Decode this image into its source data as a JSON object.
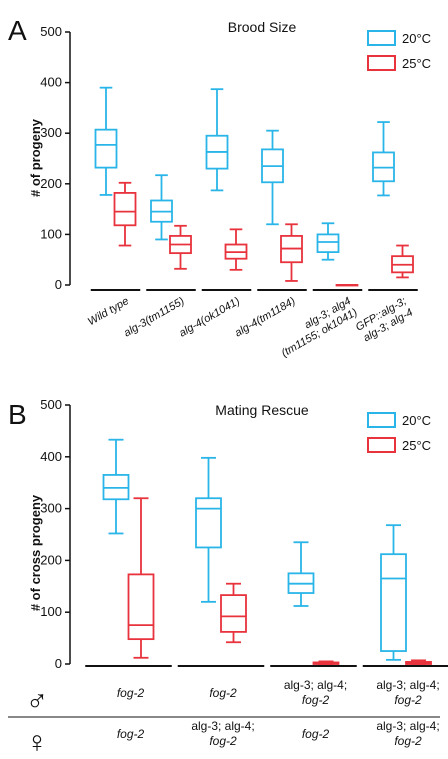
{
  "colors": {
    "c20": "#29b5e8",
    "c25": "#e8323c"
  },
  "chart_data": [
    {
      "panel": "A",
      "type": "box",
      "title": "Brood Size",
      "ylabel": "# of progeny",
      "ylim": [
        0,
        500
      ],
      "yticks": [
        0,
        100,
        200,
        300,
        400,
        500
      ],
      "legend": [
        "20°C",
        "25°C"
      ],
      "legend_position": "top-right",
      "categories": [
        [
          "Wild type"
        ],
        [
          "alg-3(tm1155)"
        ],
        [
          "alg-4(ok1041)"
        ],
        [
          "alg-4(tm1184)"
        ],
        [
          "alg-3; alg4",
          "(tm1155; ok1041)"
        ],
        [
          "GFP::alg-3;",
          "alg-3; alg-4"
        ]
      ],
      "series": [
        {
          "name": "20°C",
          "boxes": [
            {
              "min": 178,
              "q1": 232,
              "median": 277,
              "q3": 307,
              "max": 390
            },
            {
              "min": 90,
              "q1": 125,
              "median": 145,
              "q3": 167,
              "max": 217
            },
            {
              "min": 187,
              "q1": 230,
              "median": 263,
              "q3": 295,
              "max": 387
            },
            {
              "min": 120,
              "q1": 203,
              "median": 235,
              "q3": 268,
              "max": 305
            },
            {
              "min": 50,
              "q1": 65,
              "median": 85,
              "q3": 100,
              "max": 122
            },
            {
              "min": 177,
              "q1": 205,
              "median": 232,
              "q3": 262,
              "max": 322
            }
          ]
        },
        {
          "name": "25°C",
          "boxes": [
            {
              "min": 78,
              "q1": 118,
              "median": 145,
              "q3": 182,
              "max": 202
            },
            {
              "min": 32,
              "q1": 63,
              "median": 80,
              "q3": 97,
              "max": 117
            },
            {
              "min": 30,
              "q1": 52,
              "median": 65,
              "q3": 80,
              "max": 110
            },
            {
              "min": 8,
              "q1": 45,
              "median": 72,
              "q3": 97,
              "max": 120
            },
            {
              "min": 0,
              "q1": 0,
              "median": 0,
              "q3": 0,
              "max": 0
            },
            {
              "min": 15,
              "q1": 25,
              "median": 40,
              "q3": 57,
              "max": 78
            }
          ]
        }
      ]
    },
    {
      "panel": "B",
      "type": "box",
      "title": "Mating Rescue",
      "ylabel": "# of cross progeny",
      "ylim": [
        0,
        500
      ],
      "yticks": [
        0,
        100,
        200,
        300,
        400,
        500
      ],
      "legend": [
        "20°C",
        "25°C"
      ],
      "legend_position": "top-right",
      "categories": [
        {
          "male": [
            "fog-2"
          ],
          "herm": [
            "fog-2"
          ]
        },
        {
          "male": [
            "fog-2"
          ],
          "herm": [
            "alg-3; alg-4;",
            "fog-2"
          ]
        },
        {
          "male": [
            "alg-3; alg-4;",
            "fog-2"
          ],
          "herm": [
            "fog-2"
          ]
        },
        {
          "male": [
            "alg-3; alg-4;",
            "fog-2"
          ],
          "herm": [
            "alg-3; alg-4;",
            "fog-2"
          ]
        }
      ],
      "series": [
        {
          "name": "20°C",
          "boxes": [
            {
              "min": 252,
              "q1": 318,
              "median": 340,
              "q3": 365,
              "max": 433
            },
            {
              "min": 120,
              "q1": 225,
              "median": 300,
              "q3": 320,
              "max": 398
            },
            {
              "min": 112,
              "q1": 137,
              "median": 155,
              "q3": 175,
              "max": 235
            },
            {
              "min": 8,
              "q1": 25,
              "median": 165,
              "q3": 212,
              "max": 268
            }
          ]
        },
        {
          "name": "25°C",
          "boxes": [
            {
              "min": 12,
              "q1": 48,
              "median": 75,
              "q3": 173,
              "max": 320
            },
            {
              "min": 42,
              "q1": 62,
              "median": 92,
              "q3": 133,
              "max": 155
            },
            {
              "min": 0,
              "q1": 0,
              "median": 1,
              "q3": 3,
              "max": 5
            },
            {
              "min": 0,
              "q1": 0,
              "median": 2,
              "q3": 4,
              "max": 7
            }
          ]
        }
      ]
    }
  ],
  "symbols": {
    "male": "♂",
    "female": "♀"
  }
}
